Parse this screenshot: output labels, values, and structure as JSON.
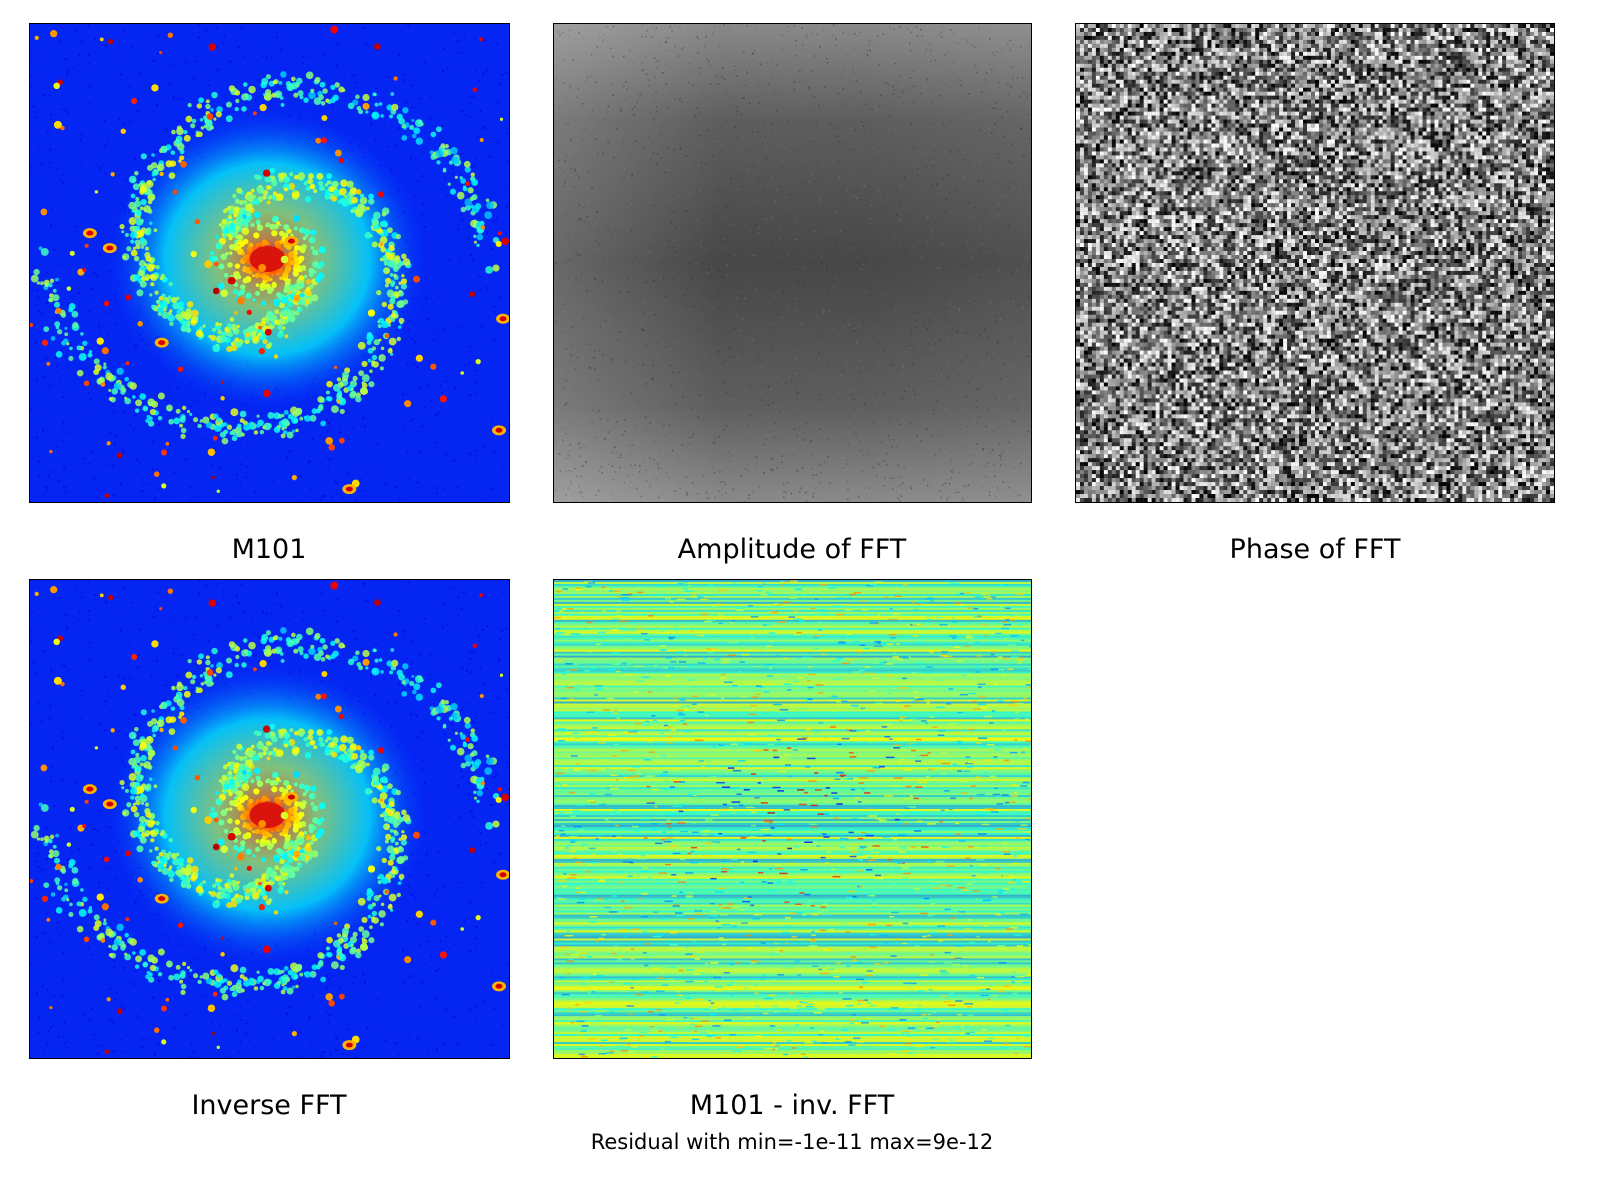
{
  "panels": {
    "original": {
      "title": "M101"
    },
    "amplitude": {
      "title": "Amplitude of FFT"
    },
    "phase": {
      "title": "Phase of FFT"
    },
    "inverse": {
      "title": "Inverse FFT"
    },
    "residual": {
      "title": "M101 - inv. FFT",
      "note": "Residual with min=-1e-11 max=9e-12"
    }
  },
  "colormaps": {
    "galaxy": "jet",
    "amplitude": "gray",
    "phase": "gray",
    "residual": "jet"
  },
  "colors": {
    "galaxy_background": "#0526f2",
    "galaxy_core": "#d8140c",
    "residual_base": "#c6e63a"
  }
}
